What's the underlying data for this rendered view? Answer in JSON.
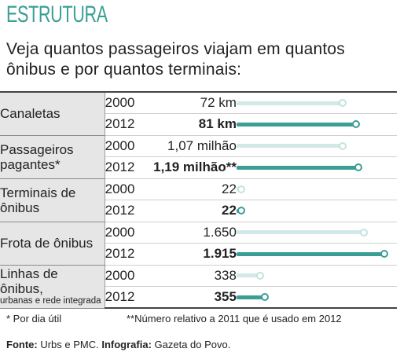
{
  "header": {
    "section": "ESTRUTURA",
    "subtitle": "Veja quantos passageiros viajam em quantos ônibus e por quantos terminais:"
  },
  "chart_data": {
    "type": "bar",
    "orientation": "horizontal",
    "series_years": [
      "2000",
      "2012"
    ],
    "colors": {
      "2000": "#d2e9e6",
      "2012": "#3a9e94"
    },
    "categories": [
      {
        "label": "Canaletas",
        "note": "",
        "rows": [
          {
            "year": "2000",
            "value": 72,
            "display": "72 km"
          },
          {
            "year": "2012",
            "value": 81,
            "display": "81 km"
          }
        ]
      },
      {
        "label": "Passageiros pagantes*",
        "note": "",
        "rows": [
          {
            "year": "2000",
            "value": 1.07,
            "display": "1,07 milhão"
          },
          {
            "year": "2012",
            "value": 1.19,
            "display": "1,19 milhão**"
          }
        ]
      },
      {
        "label": "Terminais de ônibus",
        "note": "",
        "rows": [
          {
            "year": "2000",
            "value": 22,
            "display": "22"
          },
          {
            "year": "2012",
            "value": 22,
            "display": "22"
          }
        ]
      },
      {
        "label": "Frota de ônibus",
        "note": "",
        "rows": [
          {
            "year": "2000",
            "value": 1650,
            "display": "1.650"
          },
          {
            "year": "2012",
            "value": 1915,
            "display": "1.915"
          }
        ]
      },
      {
        "label": "Linhas de ônibus,",
        "note": "urbanas e rede integrada",
        "rows": [
          {
            "year": "2000",
            "value": 338,
            "display": "338"
          },
          {
            "year": "2012",
            "value": 355,
            "display": "355"
          }
        ]
      }
    ]
  },
  "footnotes": {
    "note1": "* Por dia útil",
    "note2": "**Número relativo a 2011 que é usado em 2012"
  },
  "source": {
    "label1": "Fonte:",
    "text1": " Urbs e PMC. ",
    "label2": "Infografia:",
    "text2": " Gazeta do Povo."
  }
}
